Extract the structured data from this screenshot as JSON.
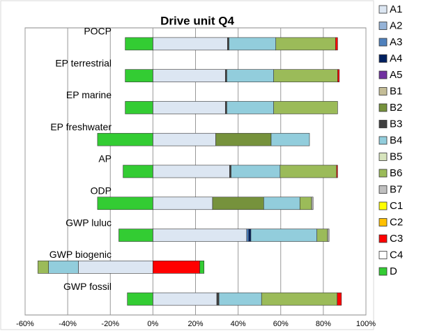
{
  "chart_data": {
    "type": "stacked-bar-horizontal",
    "title": "Drive unit Q4",
    "categories": [
      "POCP",
      "EP terrestrial",
      "EP marine",
      "EP freshwater",
      "AP",
      "ODP",
      "GWP luluc",
      "GWP biogenic",
      "GWP fossil"
    ],
    "series": [
      {
        "name": "A1",
        "color": "#dce6f2",
        "values": [
          35,
          34,
          34,
          29.5,
          36,
          28,
          44,
          -35,
          30
        ]
      },
      {
        "name": "A2",
        "color": "#95b3d7",
        "values": [
          null,
          null,
          null,
          null,
          null,
          null,
          null,
          null,
          null
        ]
      },
      {
        "name": "A3",
        "color": "#4f81bd",
        "values": [
          null,
          null,
          null,
          null,
          null,
          null,
          1,
          null,
          null
        ]
      },
      {
        "name": "A4",
        "color": "#002060",
        "values": [
          null,
          null,
          null,
          null,
          null,
          null,
          1,
          null,
          null
        ]
      },
      {
        "name": "A5",
        "color": "#7030a0",
        "values": [
          null,
          null,
          null,
          null,
          null,
          null,
          null,
          null,
          null
        ]
      },
      {
        "name": "B1",
        "color": "#c4bd97",
        "values": [
          null,
          null,
          null,
          null,
          null,
          null,
          null,
          null,
          null
        ]
      },
      {
        "name": "B2",
        "color": "#76923c",
        "values": [
          null,
          null,
          null,
          26,
          null,
          24,
          null,
          null,
          null
        ]
      },
      {
        "name": "B3",
        "color": "#404040",
        "values": [
          0.7,
          0.7,
          0.7,
          null,
          0.7,
          null,
          null,
          null,
          1
        ]
      },
      {
        "name": "B4",
        "color": "#92cddc",
        "values": [
          22,
          22,
          22,
          18,
          23,
          17,
          31,
          -14,
          20
        ]
      },
      {
        "name": "B5",
        "color": "#d7e4bd",
        "values": [
          null,
          null,
          null,
          null,
          null,
          null,
          null,
          null,
          null
        ]
      },
      {
        "name": "B6",
        "color": "#9bbb59",
        "values": [
          28,
          30,
          30,
          null,
          26.5,
          5.5,
          5,
          -5,
          35.5
        ]
      },
      {
        "name": "B7",
        "color": "#bfbfbf",
        "values": [
          null,
          null,
          null,
          null,
          null,
          0.7,
          0.7,
          null,
          null
        ]
      },
      {
        "name": "C1",
        "color": "#ffff00",
        "values": [
          null,
          null,
          null,
          null,
          null,
          null,
          null,
          null,
          null
        ]
      },
      {
        "name": "C2",
        "color": "#ffc000",
        "values": [
          null,
          null,
          null,
          null,
          null,
          null,
          null,
          null,
          null
        ]
      },
      {
        "name": "C3",
        "color": "#ff0000",
        "values": [
          1,
          0.8,
          null,
          null,
          0.5,
          null,
          null,
          22,
          2
        ]
      },
      {
        "name": "C4",
        "color": "#ffffff",
        "values": [
          null,
          null,
          null,
          null,
          null,
          null,
          null,
          null,
          null
        ]
      },
      {
        "name": "D",
        "color": "#33cc33",
        "values": [
          -13,
          -13,
          -13,
          -26,
          -14,
          -26,
          -16,
          2,
          -12
        ]
      }
    ],
    "xlim": [
      -60,
      100
    ],
    "xticks": [
      {
        "value": -60,
        "label": "-60%"
      },
      {
        "value": -40,
        "label": "-40%"
      },
      {
        "value": -20,
        "label": "-20%"
      },
      {
        "value": 0,
        "label": "0%"
      },
      {
        "value": 20,
        "label": "20%"
      },
      {
        "value": 40,
        "label": "40%"
      },
      {
        "value": 60,
        "label": "60%"
      },
      {
        "value": 80,
        "label": "80%"
      },
      {
        "value": 100,
        "label": "100%"
      }
    ],
    "grid": true,
    "legend": "right"
  }
}
